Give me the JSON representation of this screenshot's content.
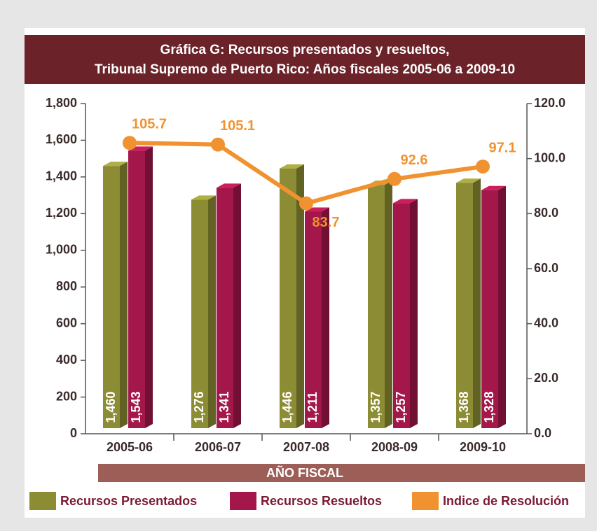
{
  "chart_data": {
    "type": "bar-line",
    "title": [
      "Gráfica G: Recursos presentados y resueltos,",
      "Tribunal Supremo de Puerto Rico: Años fiscales 2005-06 a 2009-10"
    ],
    "x_label": "AÑO FISCAL",
    "categories": [
      "2005-06",
      "2006-07",
      "2007-08",
      "2008-09",
      "2009-10"
    ],
    "series": [
      {
        "name": "Recursos Presentados",
        "color": "#8c8c35",
        "type": "bar",
        "values": [
          1460,
          1276,
          1446,
          1357,
          1368
        ],
        "value_labels": [
          "1,460",
          "1,276",
          "1,446",
          "1,357",
          "1,368"
        ]
      },
      {
        "name": "Recursos Resueltos",
        "color": "#a3174a",
        "type": "bar",
        "values": [
          1543,
          1341,
          1211,
          1257,
          1328
        ],
        "value_labels": [
          "1,543",
          "1,341",
          "1,211",
          "1,257",
          "1,328"
        ]
      },
      {
        "name": "Indice de Resolución",
        "color": "#f0922f",
        "type": "line",
        "axis": "y2",
        "values": [
          105.7,
          105.1,
          83.7,
          92.6,
          97.1
        ]
      }
    ],
    "ylim": [
      0,
      1800
    ],
    "yticks": [
      0,
      200,
      400,
      600,
      800,
      {
        "value": 1000,
        "label": "1,000"
      },
      {
        "value": 1200,
        "label": "1,200"
      },
      {
        "value": 1400,
        "label": "1,400"
      },
      {
        "value": 1600,
        "label": "1,600"
      },
      {
        "value": 1800,
        "label": "1,800"
      }
    ],
    "y2lim": [
      0,
      120
    ],
    "y2ticks": [
      {
        "value": 0,
        "label": "0.0"
      },
      {
        "value": 20,
        "label": "20.0"
      },
      {
        "value": 40,
        "label": "40.0"
      },
      {
        "value": 60,
        "label": "60.0"
      },
      {
        "value": 80,
        "label": "80.0"
      },
      {
        "value": 100,
        "label": "100.0"
      },
      {
        "value": 120,
        "label": "120.0"
      }
    ],
    "legend": "bottom"
  }
}
